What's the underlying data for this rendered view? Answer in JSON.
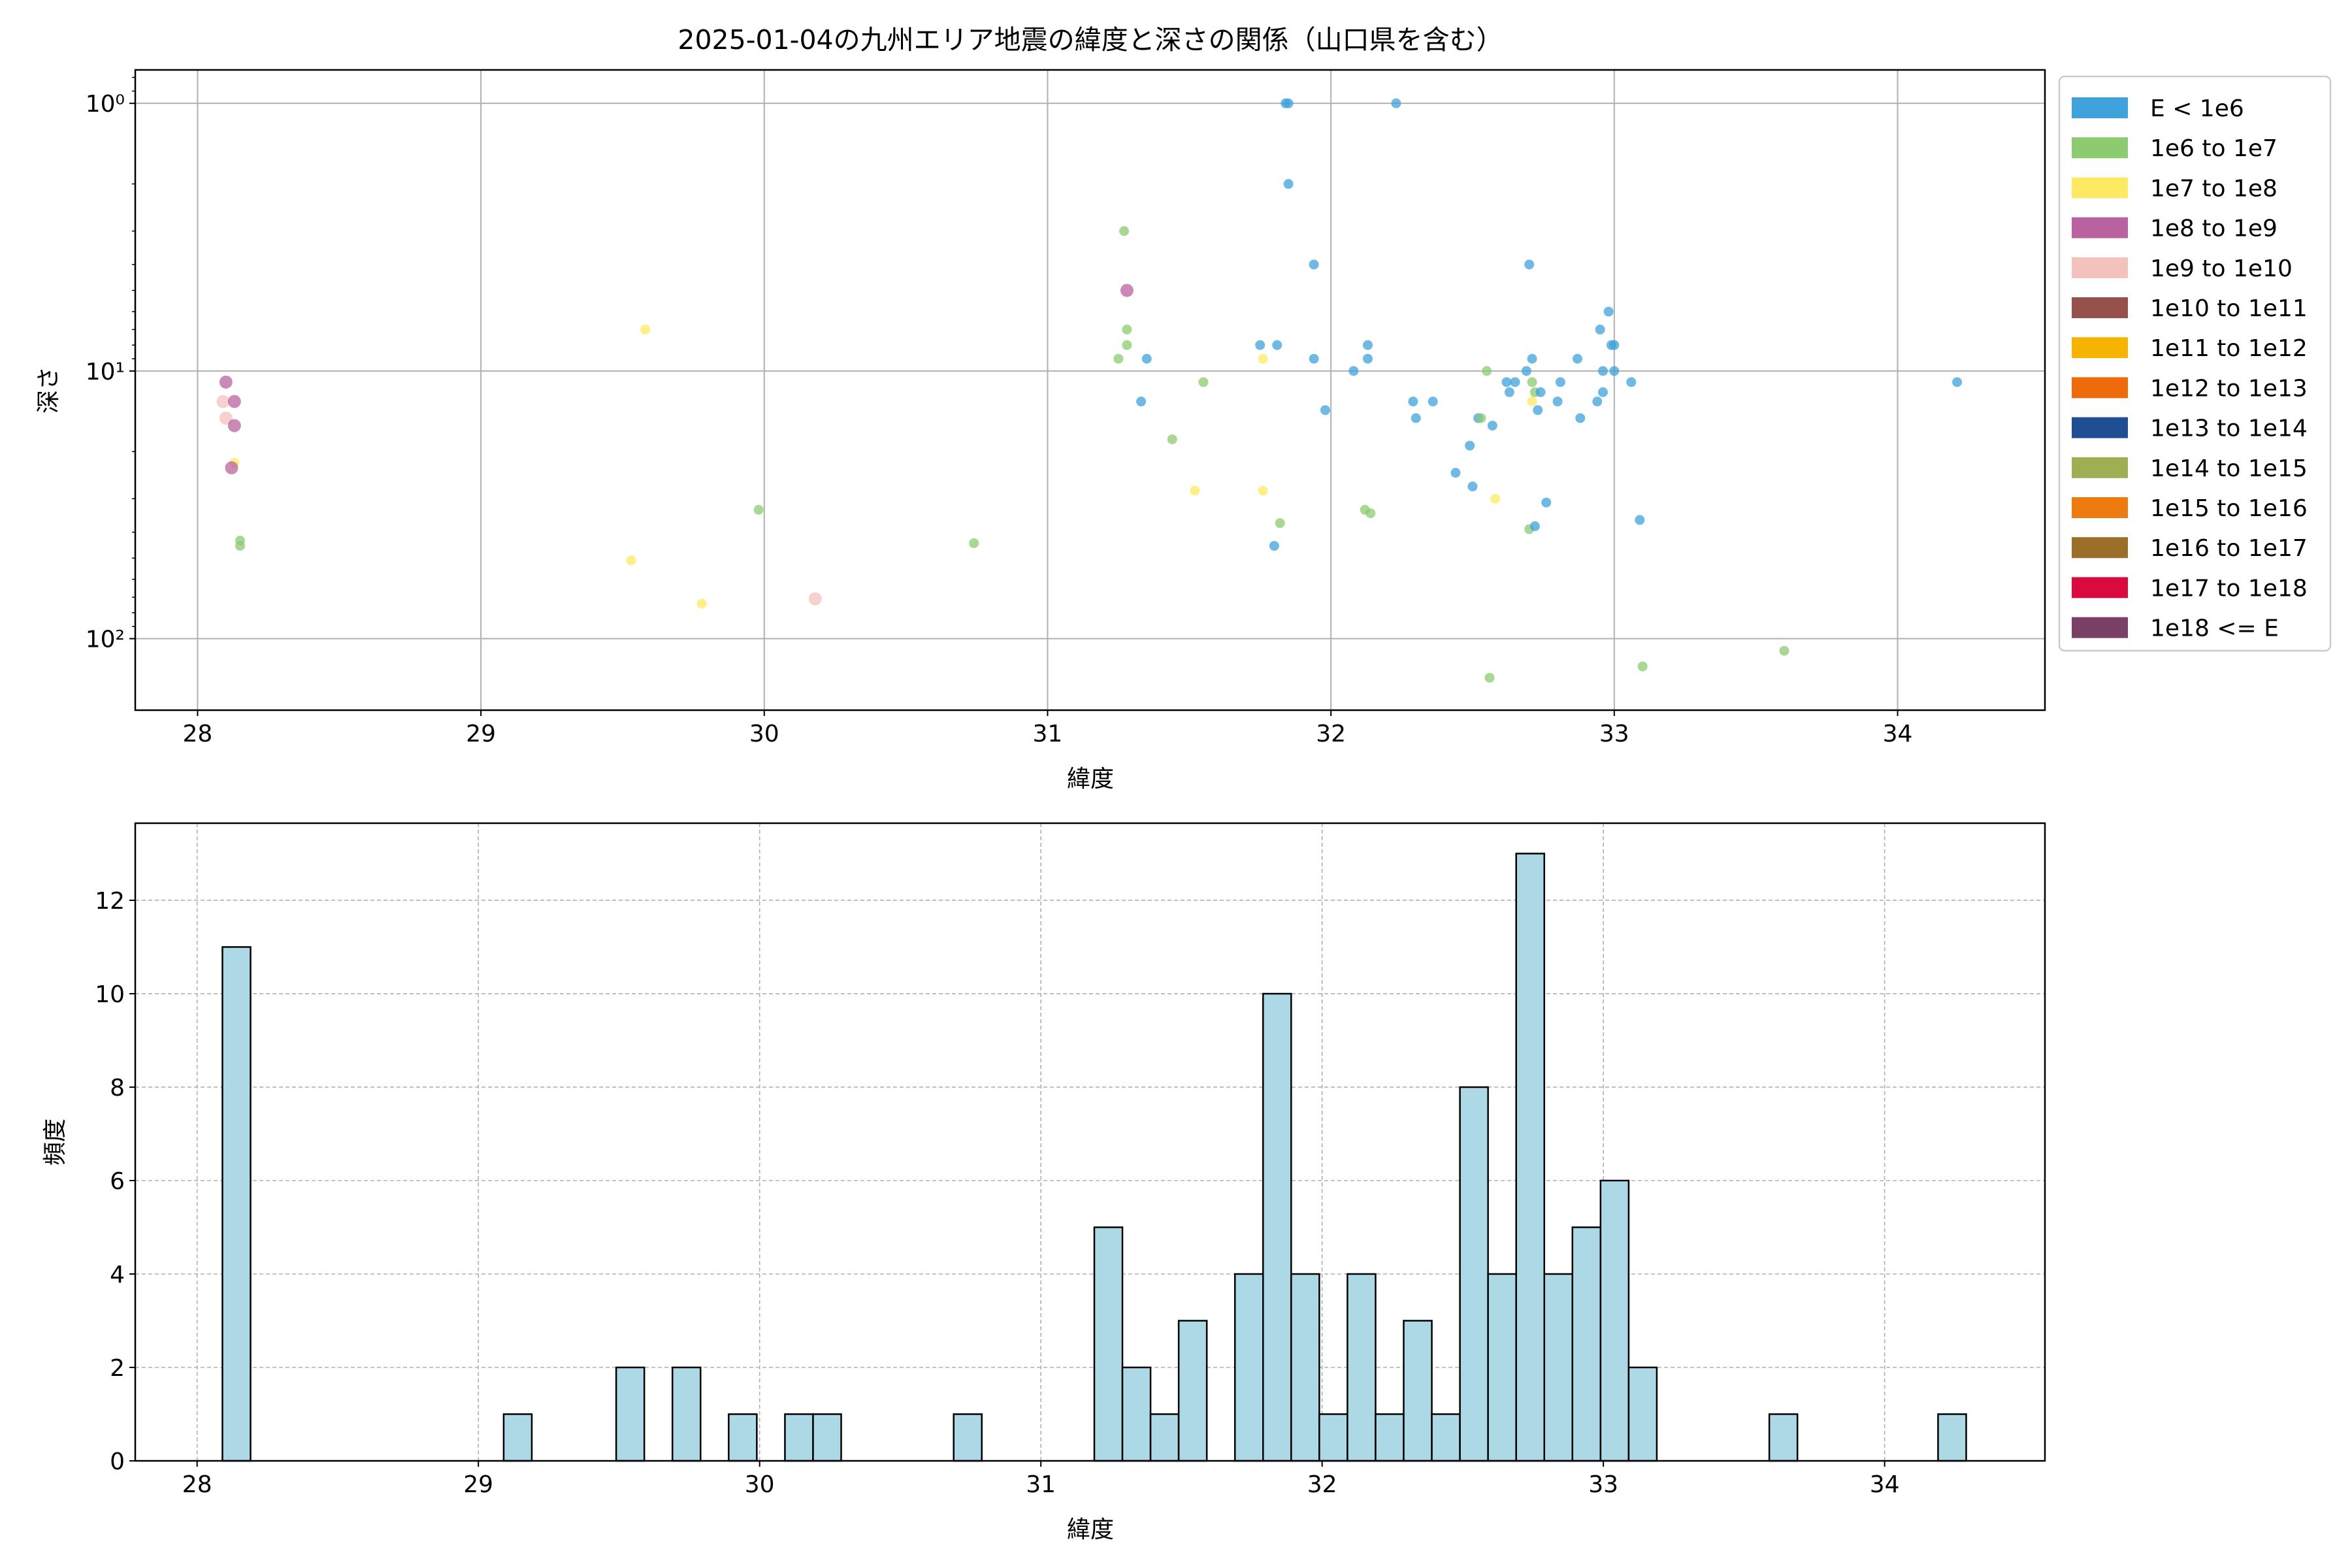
{
  "chart_data": [
    {
      "type": "scatter",
      "title": "2025-01-04の九州エリア地震の緯度と深さの関係（山口県を含む）",
      "xlabel": "緯度",
      "ylabel": "深さ",
      "xlim": [
        27.78,
        34.52
      ],
      "ylim": [
        0.75,
        185
      ],
      "yscale": "log",
      "inverted_y": true,
      "grid": true,
      "xticks": [
        "28",
        "29",
        "30",
        "31",
        "32",
        "33",
        "34"
      ],
      "yticks": [
        {
          "value": 1,
          "label": "10⁰"
        },
        {
          "value": 10,
          "label": "10¹"
        },
        {
          "value": 100,
          "label": "10²"
        }
      ],
      "legend_position": "outside-right",
      "legend": [
        {
          "label": "E < 1e6",
          "color": "#3fa2dc"
        },
        {
          "label": "1e6 to 1e7",
          "color": "#8ccb70"
        },
        {
          "label": "1e7 to 1e8",
          "color": "#fdea62"
        },
        {
          "label": "1e8 to 1e9",
          "color": "#b9629f"
        },
        {
          "label": "1e9 to 1e10",
          "color": "#f4c2bd"
        },
        {
          "label": "1e10 to 1e11",
          "color": "#96514d"
        },
        {
          "label": "1e11 to 1e12",
          "color": "#f6b300"
        },
        {
          "label": "1e12 to 1e13",
          "color": "#ee6a0b"
        },
        {
          "label": "1e13 to 1e14",
          "color": "#1f4e93"
        },
        {
          "label": "1e14 to 1e15",
          "color": "#9daf52"
        },
        {
          "label": "1e15 to 1e16",
          "color": "#ee7b0f"
        },
        {
          "label": "1e16 to 1e17",
          "color": "#9b6f2a"
        },
        {
          "label": "1e17 to 1e18",
          "color": "#da0a3f"
        },
        {
          "label": "1e18 <= E",
          "color": "#7b4068"
        }
      ],
      "points": [
        {
          "x": 28.1,
          "y": 11.0,
          "c": 3
        },
        {
          "x": 28.09,
          "y": 13.0,
          "c": 4
        },
        {
          "x": 28.13,
          "y": 13.0,
          "c": 3
        },
        {
          "x": 28.1,
          "y": 15.0,
          "c": 4
        },
        {
          "x": 28.13,
          "y": 16.0,
          "c": 3
        },
        {
          "x": 28.13,
          "y": 22.0,
          "c": 2
        },
        {
          "x": 28.12,
          "y": 23.0,
          "c": 3
        },
        {
          "x": 28.15,
          "y": 43.0,
          "c": 1
        },
        {
          "x": 28.15,
          "y": 45.0,
          "c": 1
        },
        {
          "x": 29.53,
          "y": 51.0,
          "c": 2
        },
        {
          "x": 29.58,
          "y": 7.0,
          "c": 2
        },
        {
          "x": 29.78,
          "y": 74.0,
          "c": 2
        },
        {
          "x": 29.98,
          "y": 33.0,
          "c": 1
        },
        {
          "x": 30.18,
          "y": 71.0,
          "c": 4
        },
        {
          "x": 30.74,
          "y": 44.0,
          "c": 1
        },
        {
          "x": 31.25,
          "y": 9.0,
          "c": 1
        },
        {
          "x": 31.27,
          "y": 3.0,
          "c": 1
        },
        {
          "x": 31.28,
          "y": 7.0,
          "c": 1
        },
        {
          "x": 31.28,
          "y": 8.0,
          "c": 1
        },
        {
          "x": 31.28,
          "y": 5.0,
          "c": 3
        },
        {
          "x": 31.33,
          "y": 13.0,
          "c": 0
        },
        {
          "x": 31.35,
          "y": 9.0,
          "c": 0
        },
        {
          "x": 31.44,
          "y": 18.0,
          "c": 1
        },
        {
          "x": 31.52,
          "y": 28.0,
          "c": 2
        },
        {
          "x": 31.55,
          "y": 11.0,
          "c": 1
        },
        {
          "x": 31.75,
          "y": 8.0,
          "c": 0
        },
        {
          "x": 31.76,
          "y": 9.0,
          "c": 2
        },
        {
          "x": 31.76,
          "y": 28.0,
          "c": 2
        },
        {
          "x": 31.8,
          "y": 45.0,
          "c": 0
        },
        {
          "x": 31.81,
          "y": 8.0,
          "c": 0
        },
        {
          "x": 31.82,
          "y": 37.0,
          "c": 1
        },
        {
          "x": 31.84,
          "y": 1.0,
          "c": 0
        },
        {
          "x": 31.85,
          "y": 1.0,
          "c": 0
        },
        {
          "x": 31.85,
          "y": 2.0,
          "c": 0
        },
        {
          "x": 31.94,
          "y": 4.0,
          "c": 0
        },
        {
          "x": 31.94,
          "y": 9.0,
          "c": 0
        },
        {
          "x": 31.98,
          "y": 14.0,
          "c": 0
        },
        {
          "x": 32.08,
          "y": 10.0,
          "c": 0
        },
        {
          "x": 32.12,
          "y": 33.0,
          "c": 1
        },
        {
          "x": 32.13,
          "y": 8.0,
          "c": 0
        },
        {
          "x": 32.13,
          "y": 9.0,
          "c": 0
        },
        {
          "x": 32.14,
          "y": 34.0,
          "c": 1
        },
        {
          "x": 32.23,
          "y": 1.0,
          "c": 0
        },
        {
          "x": 32.29,
          "y": 13.0,
          "c": 0
        },
        {
          "x": 32.3,
          "y": 15.0,
          "c": 0
        },
        {
          "x": 32.36,
          "y": 13.0,
          "c": 0
        },
        {
          "x": 32.44,
          "y": 24.0,
          "c": 0
        },
        {
          "x": 32.49,
          "y": 19.0,
          "c": 0
        },
        {
          "x": 32.5,
          "y": 27.0,
          "c": 0
        },
        {
          "x": 32.52,
          "y": 15.0,
          "c": 0
        },
        {
          "x": 32.53,
          "y": 15.0,
          "c": 1
        },
        {
          "x": 32.55,
          "y": 10.0,
          "c": 1
        },
        {
          "x": 32.56,
          "y": 140.0,
          "c": 1
        },
        {
          "x": 32.57,
          "y": 16.0,
          "c": 0
        },
        {
          "x": 32.58,
          "y": 30.0,
          "c": 2
        },
        {
          "x": 32.62,
          "y": 11.0,
          "c": 0
        },
        {
          "x": 32.63,
          "y": 12.0,
          "c": 0
        },
        {
          "x": 32.65,
          "y": 11.0,
          "c": 0
        },
        {
          "x": 32.69,
          "y": 10.0,
          "c": 0
        },
        {
          "x": 32.7,
          "y": 4.0,
          "c": 0
        },
        {
          "x": 32.7,
          "y": 39.0,
          "c": 1
        },
        {
          "x": 32.71,
          "y": 11.0,
          "c": 1
        },
        {
          "x": 32.71,
          "y": 13.0,
          "c": 2
        },
        {
          "x": 32.71,
          "y": 9.0,
          "c": 0
        },
        {
          "x": 32.72,
          "y": 12.0,
          "c": 1
        },
        {
          "x": 32.72,
          "y": 38.0,
          "c": 0
        },
        {
          "x": 32.73,
          "y": 14.0,
          "c": 0
        },
        {
          "x": 32.74,
          "y": 12.0,
          "c": 0
        },
        {
          "x": 32.76,
          "y": 31.0,
          "c": 0
        },
        {
          "x": 32.8,
          "y": 13.0,
          "c": 0
        },
        {
          "x": 32.81,
          "y": 11.0,
          "c": 0
        },
        {
          "x": 32.87,
          "y": 9.0,
          "c": 0
        },
        {
          "x": 32.88,
          "y": 15.0,
          "c": 0
        },
        {
          "x": 32.94,
          "y": 13.0,
          "c": 0
        },
        {
          "x": 32.95,
          "y": 7.0,
          "c": 0
        },
        {
          "x": 32.96,
          "y": 10.0,
          "c": 0
        },
        {
          "x": 32.96,
          "y": 12.0,
          "c": 0
        },
        {
          "x": 32.98,
          "y": 6.0,
          "c": 0
        },
        {
          "x": 32.99,
          "y": 8.0,
          "c": 0
        },
        {
          "x": 33.0,
          "y": 8.0,
          "c": 0
        },
        {
          "x": 33.0,
          "y": 10.0,
          "c": 0
        },
        {
          "x": 33.06,
          "y": 11.0,
          "c": 0
        },
        {
          "x": 33.09,
          "y": 36.0,
          "c": 0
        },
        {
          "x": 33.1,
          "y": 127.0,
          "c": 1
        },
        {
          "x": 33.6,
          "y": 111.0,
          "c": 1
        },
        {
          "x": 34.21,
          "y": 11.0,
          "c": 0
        }
      ]
    },
    {
      "type": "bar",
      "title": "",
      "xlabel": "緯度",
      "ylabel": "頻度",
      "xlim": [
        27.78,
        34.57
      ],
      "ylim": [
        0,
        13.65
      ],
      "grid": true,
      "xticks": [
        "28",
        "29",
        "30",
        "31",
        "32",
        "33",
        "34"
      ],
      "yticks": [
        "0",
        "2",
        "4",
        "6",
        "8",
        "10",
        "12"
      ],
      "bar_color": "#add8e6",
      "bin_width": 0.1,
      "bins": [
        {
          "x": 28.09,
          "v": 11
        },
        {
          "x": 29.09,
          "v": 1
        },
        {
          "x": 29.49,
          "v": 2
        },
        {
          "x": 29.69,
          "v": 2
        },
        {
          "x": 29.89,
          "v": 1
        },
        {
          "x": 30.09,
          "v": 1
        },
        {
          "x": 30.19,
          "v": 1
        },
        {
          "x": 30.69,
          "v": 1
        },
        {
          "x": 31.19,
          "v": 5
        },
        {
          "x": 31.29,
          "v": 2
        },
        {
          "x": 31.39,
          "v": 1
        },
        {
          "x": 31.49,
          "v": 3
        },
        {
          "x": 31.69,
          "v": 4
        },
        {
          "x": 31.79,
          "v": 10
        },
        {
          "x": 31.89,
          "v": 4
        },
        {
          "x": 31.99,
          "v": 1
        },
        {
          "x": 32.09,
          "v": 4
        },
        {
          "x": 32.19,
          "v": 1
        },
        {
          "x": 32.29,
          "v": 3
        },
        {
          "x": 32.39,
          "v": 1
        },
        {
          "x": 32.49,
          "v": 8
        },
        {
          "x": 32.59,
          "v": 4
        },
        {
          "x": 32.69,
          "v": 13
        },
        {
          "x": 32.79,
          "v": 4
        },
        {
          "x": 32.89,
          "v": 5
        },
        {
          "x": 32.99,
          "v": 6
        },
        {
          "x": 33.09,
          "v": 2
        },
        {
          "x": 33.59,
          "v": 1
        },
        {
          "x": 34.19,
          "v": 1
        }
      ]
    }
  ]
}
